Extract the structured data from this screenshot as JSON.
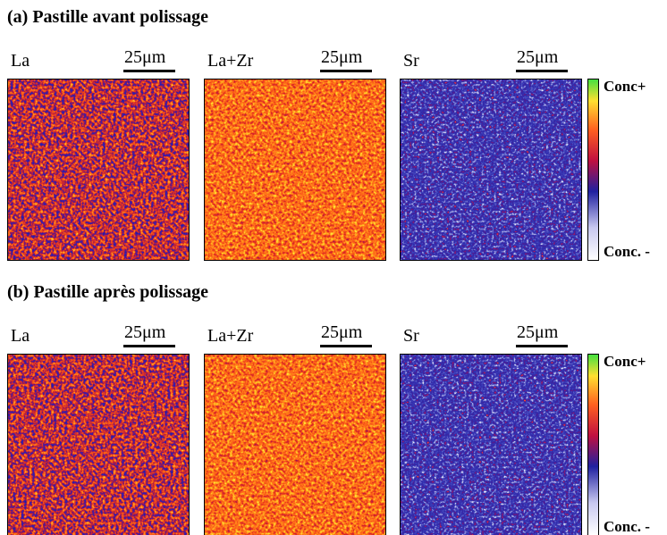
{
  "panels": [
    {
      "title": "(a) Pastille avant polissage",
      "maps": [
        {
          "label": "La",
          "scale": "25μm"
        },
        {
          "label": "La+Zr",
          "scale": "25μm"
        },
        {
          "label": "Sr",
          "scale": "25μm"
        }
      ],
      "colorbar": {
        "max_label": "Conc+",
        "min_label": "Conc. -"
      }
    },
    {
      "title": "(b) Pastille après polissage",
      "maps": [
        {
          "label": "La",
          "scale": "25μm"
        },
        {
          "label": "La+Zr",
          "scale": "25μm"
        },
        {
          "label": "Sr",
          "scale": "25μm"
        }
      ],
      "colorbar": {
        "max_label": "Conc+",
        "min_label": "Conc. -"
      }
    }
  ]
}
